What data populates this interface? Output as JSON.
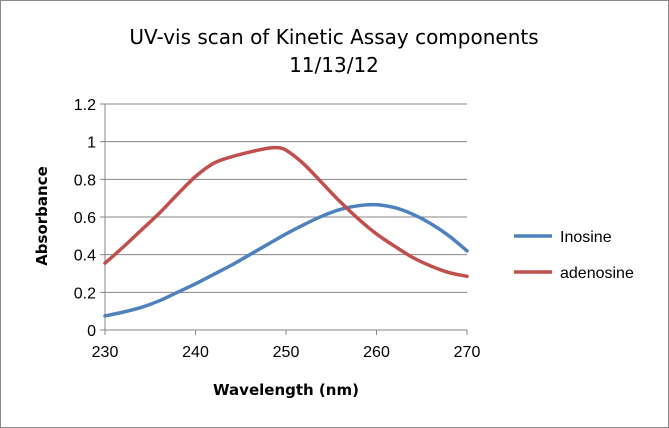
{
  "chart_data": {
    "type": "line",
    "title_line1": "UV-vis scan of Kinetic Assay components",
    "title_line2": "11/13/12",
    "xlabel": "Wavelength (nm)",
    "ylabel": "Absorbance",
    "xlim": [
      230,
      270
    ],
    "ylim": [
      0,
      1.2
    ],
    "x_ticks": [
      230,
      240,
      250,
      260,
      270
    ],
    "y_ticks": [
      0,
      0.2,
      0.4,
      0.6,
      0.8,
      1,
      1.2
    ],
    "y_tick_labels": [
      "0",
      "0.2",
      "0.4",
      "0.6",
      "0.8",
      "1",
      "1.2"
    ],
    "grid": "horizontal",
    "legend_position": "right",
    "series": [
      {
        "name": "Inosine",
        "color": "#4f81bd",
        "x": [
          230,
          232,
          234,
          236,
          238,
          240,
          242,
          244,
          246,
          248,
          250,
          252,
          254,
          256,
          258,
          260,
          262,
          264,
          266,
          268,
          270
        ],
        "y": [
          0.075,
          0.095,
          0.12,
          0.155,
          0.2,
          0.245,
          0.295,
          0.345,
          0.4,
          0.455,
          0.51,
          0.56,
          0.605,
          0.64,
          0.66,
          0.665,
          0.65,
          0.615,
          0.565,
          0.5,
          0.42
        ]
      },
      {
        "name": "adenosine",
        "color": "#c0504d",
        "x": [
          230,
          232,
          234,
          236,
          238,
          240,
          242,
          244,
          246,
          248,
          249,
          250,
          252,
          254,
          256,
          258,
          260,
          262,
          264,
          266,
          268,
          270
        ],
        "y": [
          0.355,
          0.44,
          0.53,
          0.62,
          0.72,
          0.815,
          0.885,
          0.92,
          0.945,
          0.965,
          0.968,
          0.955,
          0.88,
          0.78,
          0.68,
          0.59,
          0.51,
          0.445,
          0.385,
          0.34,
          0.305,
          0.285
        ]
      }
    ]
  }
}
